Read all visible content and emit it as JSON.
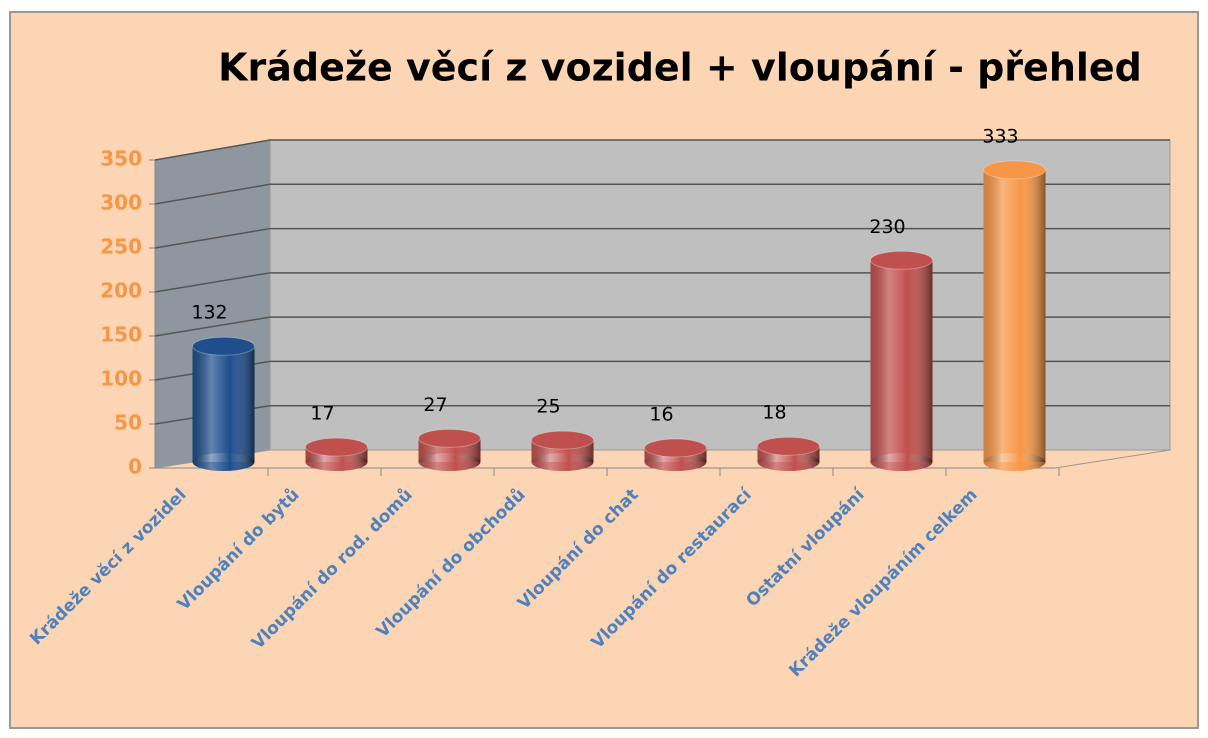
{
  "chart_data": {
    "type": "bar",
    "title": "Krádeže věcí z vozidel + vloupání - přehled",
    "categories": [
      "Krádeže věcí z vozidel",
      "Vloupání do bytů",
      "Vloupání do rod. domů",
      "Vloupání do obchodů",
      "Vloupání do chat",
      "Vloupání do restaurací",
      "Ostatní vloupání",
      "Krádeže vloupáním celkem"
    ],
    "values": [
      132,
      17,
      27,
      25,
      16,
      18,
      230,
      333
    ],
    "colors": [
      "#1f4e8c",
      "#c0504d",
      "#c0504d",
      "#c0504d",
      "#c0504d",
      "#c0504d",
      "#c0504d",
      "#f79646"
    ],
    "ylim": [
      0,
      350
    ],
    "yticks": [
      0,
      50,
      100,
      150,
      200,
      250,
      300,
      350
    ],
    "grid": true
  }
}
